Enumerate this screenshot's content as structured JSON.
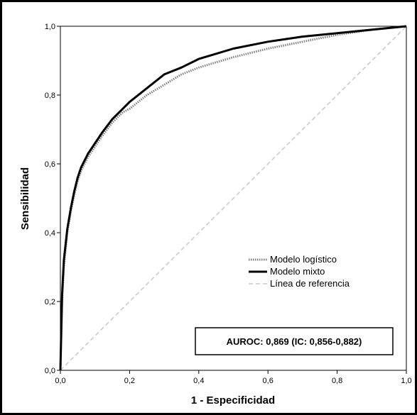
{
  "chart_data": {
    "type": "line",
    "xlabel": "1 - Especificidad",
    "ylabel": "Sensibilidad",
    "xlim": [
      0,
      1
    ],
    "ylim": [
      0,
      1
    ],
    "x_ticks": [
      "0,0",
      "0,2",
      "0,4",
      "0,6",
      "0,8",
      "1,0"
    ],
    "y_ticks": [
      "0,0",
      "0,2",
      "0,4",
      "0,6",
      "0,8",
      "1,0"
    ],
    "grid": false,
    "legend_position": "center-right",
    "annotation": "AUROC: 0,869 (IC: 0,856-0,882)",
    "series": [
      {
        "name": "Modelo logístico",
        "style": "dotted",
        "color": "#808080",
        "x": [
          0,
          0.005,
          0.01,
          0.02,
          0.03,
          0.04,
          0.05,
          0.06,
          0.08,
          0.1,
          0.12,
          0.15,
          0.18,
          0.2,
          0.25,
          0.3,
          0.35,
          0.4,
          0.45,
          0.5,
          0.6,
          0.7,
          0.8,
          0.9,
          1.0
        ],
        "y": [
          0,
          0.2,
          0.3,
          0.4,
          0.46,
          0.51,
          0.55,
          0.58,
          0.62,
          0.65,
          0.68,
          0.72,
          0.75,
          0.76,
          0.8,
          0.83,
          0.86,
          0.88,
          0.895,
          0.91,
          0.935,
          0.955,
          0.975,
          0.99,
          1.0
        ]
      },
      {
        "name": "Modelo mixto",
        "style": "solid",
        "color": "#000000",
        "x": [
          0,
          0.005,
          0.01,
          0.02,
          0.03,
          0.04,
          0.05,
          0.06,
          0.08,
          0.1,
          0.12,
          0.15,
          0.18,
          0.2,
          0.25,
          0.3,
          0.35,
          0.4,
          0.45,
          0.5,
          0.6,
          0.7,
          0.8,
          0.9,
          1.0
        ],
        "y": [
          0,
          0.22,
          0.32,
          0.41,
          0.47,
          0.52,
          0.56,
          0.59,
          0.63,
          0.66,
          0.69,
          0.73,
          0.76,
          0.78,
          0.82,
          0.86,
          0.88,
          0.905,
          0.92,
          0.935,
          0.955,
          0.97,
          0.98,
          0.99,
          1.0
        ]
      },
      {
        "name": "Línea de referencia",
        "style": "dashed",
        "color": "#c8c8c8",
        "x": [
          0,
          1
        ],
        "y": [
          0,
          1
        ]
      }
    ]
  }
}
